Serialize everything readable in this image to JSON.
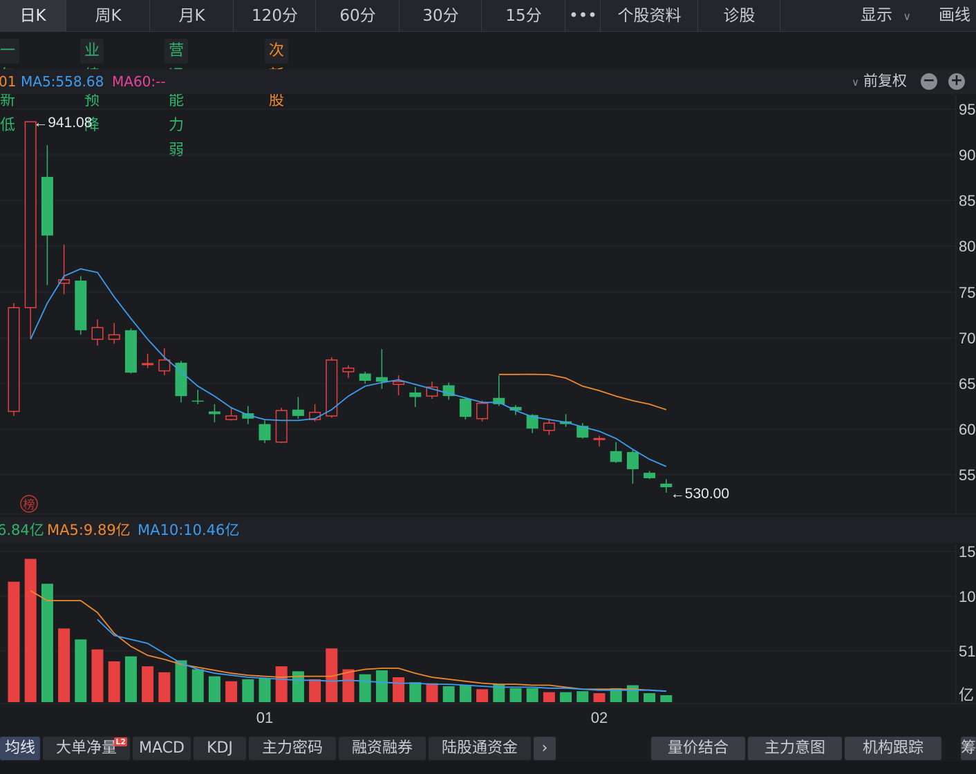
{
  "topbar": {
    "tabs": [
      "日K",
      "周K",
      "月K",
      "120分",
      "60分",
      "30分",
      "15分",
      "•••",
      "个股资料",
      "诊股"
    ],
    "display_label": "显示",
    "draw_label": "画线"
  },
  "tags": [
    {
      "label": "一年新低",
      "color": "#2fb56a"
    },
    {
      "label": "业绩预降",
      "color": "#2fb56a"
    },
    {
      "label": "营运能力弱",
      "color": "#2fb56a"
    },
    {
      "label": "次新股",
      "color": "#f0892d"
    }
  ],
  "ma_legend": {
    "partial": "01",
    "ma5": "MA5:558.68",
    "ma60": "MA60:--",
    "adjust": "前复权",
    "ma5_color": "#3b9df0",
    "ma60_color": "#e8439a"
  },
  "marks": {
    "high": "941.08",
    "low": "530.00",
    "bang": "榜"
  },
  "vol_legend": {
    "partial": "6.84亿",
    "ma5": "MA5:9.89亿",
    "ma10": "MA10:10.46亿"
  },
  "colors": {
    "up": "#e84141",
    "down": "#2fb56a",
    "ma5": "#3b9df0",
    "ma10": "#f0892d"
  },
  "chart_data": {
    "type": "candlestick",
    "price_axis_ticks": [
      "95",
      "90",
      "85",
      "80",
      "75",
      "70",
      "65",
      "60",
      "55"
    ],
    "volume_axis_ticks": [
      "15",
      "10",
      "51",
      "亿"
    ],
    "x_tick_labels": [
      "01",
      "02"
    ],
    "price_range": [
      523,
      955
    ],
    "candles": [
      {
        "o": 620,
        "h": 740,
        "l": 615,
        "c": 735,
        "dir": "up"
      },
      {
        "o": 735,
        "h": 941.08,
        "l": 700,
        "c": 941.08,
        "dir": "up"
      },
      {
        "o": 880,
        "h": 915,
        "l": 760,
        "c": 815,
        "dir": "down"
      },
      {
        "o": 762,
        "h": 805,
        "l": 750,
        "c": 766,
        "dir": "up"
      },
      {
        "o": 765,
        "h": 770,
        "l": 705,
        "c": 710,
        "dir": "down"
      },
      {
        "o": 700,
        "h": 722,
        "l": 693,
        "c": 713,
        "dir": "up"
      },
      {
        "o": 700,
        "h": 718,
        "l": 695,
        "c": 705,
        "dir": "up"
      },
      {
        "o": 710,
        "h": 712,
        "l": 662,
        "c": 663,
        "dir": "down"
      },
      {
        "o": 672,
        "h": 684,
        "l": 668,
        "c": 673,
        "dir": "up"
      },
      {
        "o": 665,
        "h": 690,
        "l": 660,
        "c": 677,
        "dir": "up"
      },
      {
        "o": 674,
        "h": 676,
        "l": 630,
        "c": 637,
        "dir": "down"
      },
      {
        "o": 632,
        "h": 644,
        "l": 628,
        "c": 631,
        "dir": "down"
      },
      {
        "o": 620,
        "h": 628,
        "l": 608,
        "c": 617,
        "dir": "down"
      },
      {
        "o": 611,
        "h": 625,
        "l": 610,
        "c": 615,
        "dir": "up"
      },
      {
        "o": 618,
        "h": 626,
        "l": 606,
        "c": 612,
        "dir": "down"
      },
      {
        "o": 606,
        "h": 610,
        "l": 585,
        "c": 588,
        "dir": "down"
      },
      {
        "o": 586,
        "h": 624,
        "l": 585,
        "c": 621,
        "dir": "up"
      },
      {
        "o": 622,
        "h": 636,
        "l": 612,
        "c": 615,
        "dir": "down"
      },
      {
        "o": 611,
        "h": 628,
        "l": 609,
        "c": 619,
        "dir": "up"
      },
      {
        "o": 615,
        "h": 680,
        "l": 613,
        "c": 677,
        "dir": "up"
      },
      {
        "o": 664,
        "h": 671,
        "l": 657,
        "c": 668,
        "dir": "up"
      },
      {
        "o": 662,
        "h": 664,
        "l": 651,
        "c": 654,
        "dir": "down"
      },
      {
        "o": 658,
        "h": 689,
        "l": 645,
        "c": 653,
        "dir": "down"
      },
      {
        "o": 650,
        "h": 660,
        "l": 638,
        "c": 653,
        "dir": "up"
      },
      {
        "o": 641,
        "h": 647,
        "l": 625,
        "c": 636,
        "dir": "down"
      },
      {
        "o": 637,
        "h": 653,
        "l": 634,
        "c": 647,
        "dir": "up"
      },
      {
        "o": 649,
        "h": 652,
        "l": 633,
        "c": 637,
        "dir": "down"
      },
      {
        "o": 634,
        "h": 636,
        "l": 611,
        "c": 614,
        "dir": "down"
      },
      {
        "o": 612,
        "h": 632,
        "l": 609,
        "c": 629,
        "dir": "up"
      },
      {
        "o": 635,
        "h": 660,
        "l": 626,
        "c": 628,
        "dir": "down"
      },
      {
        "o": 625,
        "h": 627,
        "l": 616,
        "c": 621,
        "dir": "down"
      },
      {
        "o": 616,
        "h": 617,
        "l": 596,
        "c": 601,
        "dir": "down"
      },
      {
        "o": 599,
        "h": 612,
        "l": 594,
        "c": 607,
        "dir": "up"
      },
      {
        "o": 606,
        "h": 617,
        "l": 603,
        "c": 609,
        "dir": "down"
      },
      {
        "o": 604,
        "h": 607,
        "l": 590,
        "c": 591,
        "dir": "down"
      },
      {
        "o": 590,
        "h": 593,
        "l": 581,
        "c": 590,
        "dir": "up"
      },
      {
        "o": 576,
        "h": 586,
        "l": 563,
        "c": 564,
        "dir": "down"
      },
      {
        "o": 575,
        "h": 577,
        "l": 540,
        "c": 556,
        "dir": "down"
      },
      {
        "o": 552,
        "h": 554,
        "l": 545,
        "c": 546,
        "dir": "down"
      },
      {
        "o": 540,
        "h": 545,
        "l": 530,
        "c": 536,
        "dir": "down"
      }
    ],
    "ma5_line": [
      null,
      700,
      740,
      770,
      778,
      774,
      747,
      723,
      700,
      680,
      664,
      648,
      637,
      624,
      616,
      611,
      610,
      610,
      612,
      622,
      637,
      648,
      652,
      655,
      650,
      645,
      640,
      635,
      630,
      630,
      621,
      614,
      611,
      608,
      603,
      598,
      590,
      578,
      567,
      559
    ],
    "ma60_line": {
      "start_index": 29,
      "values": [
        661,
        661,
        661.2,
        660.8,
        657,
        648,
        643,
        637,
        632,
        628,
        622
      ]
    },
    "volume_range": [
      0,
      15
    ],
    "volumes": [
      {
        "v": 12.1,
        "dir": "up"
      },
      {
        "v": 14.4,
        "dir": "up"
      },
      {
        "v": 11.9,
        "dir": "down"
      },
      {
        "v": 7.4,
        "dir": "up"
      },
      {
        "v": 6.3,
        "dir": "down"
      },
      {
        "v": 5.3,
        "dir": "up"
      },
      {
        "v": 4.1,
        "dir": "up"
      },
      {
        "v": 4.6,
        "dir": "down"
      },
      {
        "v": 3.6,
        "dir": "up"
      },
      {
        "v": 3.0,
        "dir": "up"
      },
      {
        "v": 4.2,
        "dir": "down"
      },
      {
        "v": 3.3,
        "dir": "down"
      },
      {
        "v": 2.6,
        "dir": "down"
      },
      {
        "v": 2.1,
        "dir": "up"
      },
      {
        "v": 2.3,
        "dir": "down"
      },
      {
        "v": 2.4,
        "dir": "down"
      },
      {
        "v": 3.6,
        "dir": "up"
      },
      {
        "v": 3.1,
        "dir": "down"
      },
      {
        "v": 2.3,
        "dir": "up"
      },
      {
        "v": 5.4,
        "dir": "up"
      },
      {
        "v": 3.3,
        "dir": "up"
      },
      {
        "v": 2.8,
        "dir": "down"
      },
      {
        "v": 3.2,
        "dir": "down"
      },
      {
        "v": 2.5,
        "dir": "up"
      },
      {
        "v": 2.0,
        "dir": "down"
      },
      {
        "v": 1.9,
        "dir": "up"
      },
      {
        "v": 1.6,
        "dir": "down"
      },
      {
        "v": 1.7,
        "dir": "down"
      },
      {
        "v": 1.3,
        "dir": "up"
      },
      {
        "v": 1.8,
        "dir": "down"
      },
      {
        "v": 1.4,
        "dir": "down"
      },
      {
        "v": 1.4,
        "dir": "down"
      },
      {
        "v": 1.0,
        "dir": "up"
      },
      {
        "v": 1.0,
        "dir": "down"
      },
      {
        "v": 1.1,
        "dir": "down"
      },
      {
        "v": 0.9,
        "dir": "up"
      },
      {
        "v": 1.4,
        "dir": "down"
      },
      {
        "v": 1.7,
        "dir": "down"
      },
      {
        "v": 0.9,
        "dir": "down"
      },
      {
        "v": 0.7,
        "dir": "down"
      }
    ],
    "vol_ma5_line": [
      null,
      11.2,
      10.2,
      10.2,
      10.2,
      9.0,
      6.9,
      5.6,
      4.7,
      4.3,
      3.8,
      3.5,
      3.2,
      2.9,
      2.7,
      2.6,
      2.5,
      2.6,
      2.6,
      2.6,
      3.0,
      3.3,
      3.4,
      3.4,
      2.9,
      2.5,
      2.3,
      2.1,
      1.9,
      1.8,
      1.8,
      1.7,
      1.7,
      1.5,
      1.3,
      1.3,
      1.3,
      1.3,
      1.2,
      1.1
    ],
    "vol_ma10_line": {
      "start_index": 5,
      "values": [
        8.3,
        6.7,
        6.3,
        5.9,
        4.9,
        3.9,
        3.3,
        2.9,
        2.7,
        2.5,
        2.4,
        2.3,
        2.2,
        2.2,
        2.1,
        2.2,
        2.1,
        2.0,
        1.9,
        1.9,
        1.8,
        1.8,
        1.7,
        1.6,
        1.5,
        1.5,
        1.5,
        1.4,
        1.4,
        1.3,
        1.2,
        1.2,
        1.2,
        1.2,
        1.1
      ]
    }
  },
  "bottombar": {
    "tabs": [
      "均线",
      "大单净量",
      "MACD",
      "KDJ",
      "主力密码",
      "融资融券",
      "陆股通资金"
    ],
    "l2_badge": "L2",
    "more_icon": "chevron-right-icon",
    "right_tabs": [
      "量价结合",
      "主力意图",
      "机构跟踪",
      "筹"
    ]
  }
}
